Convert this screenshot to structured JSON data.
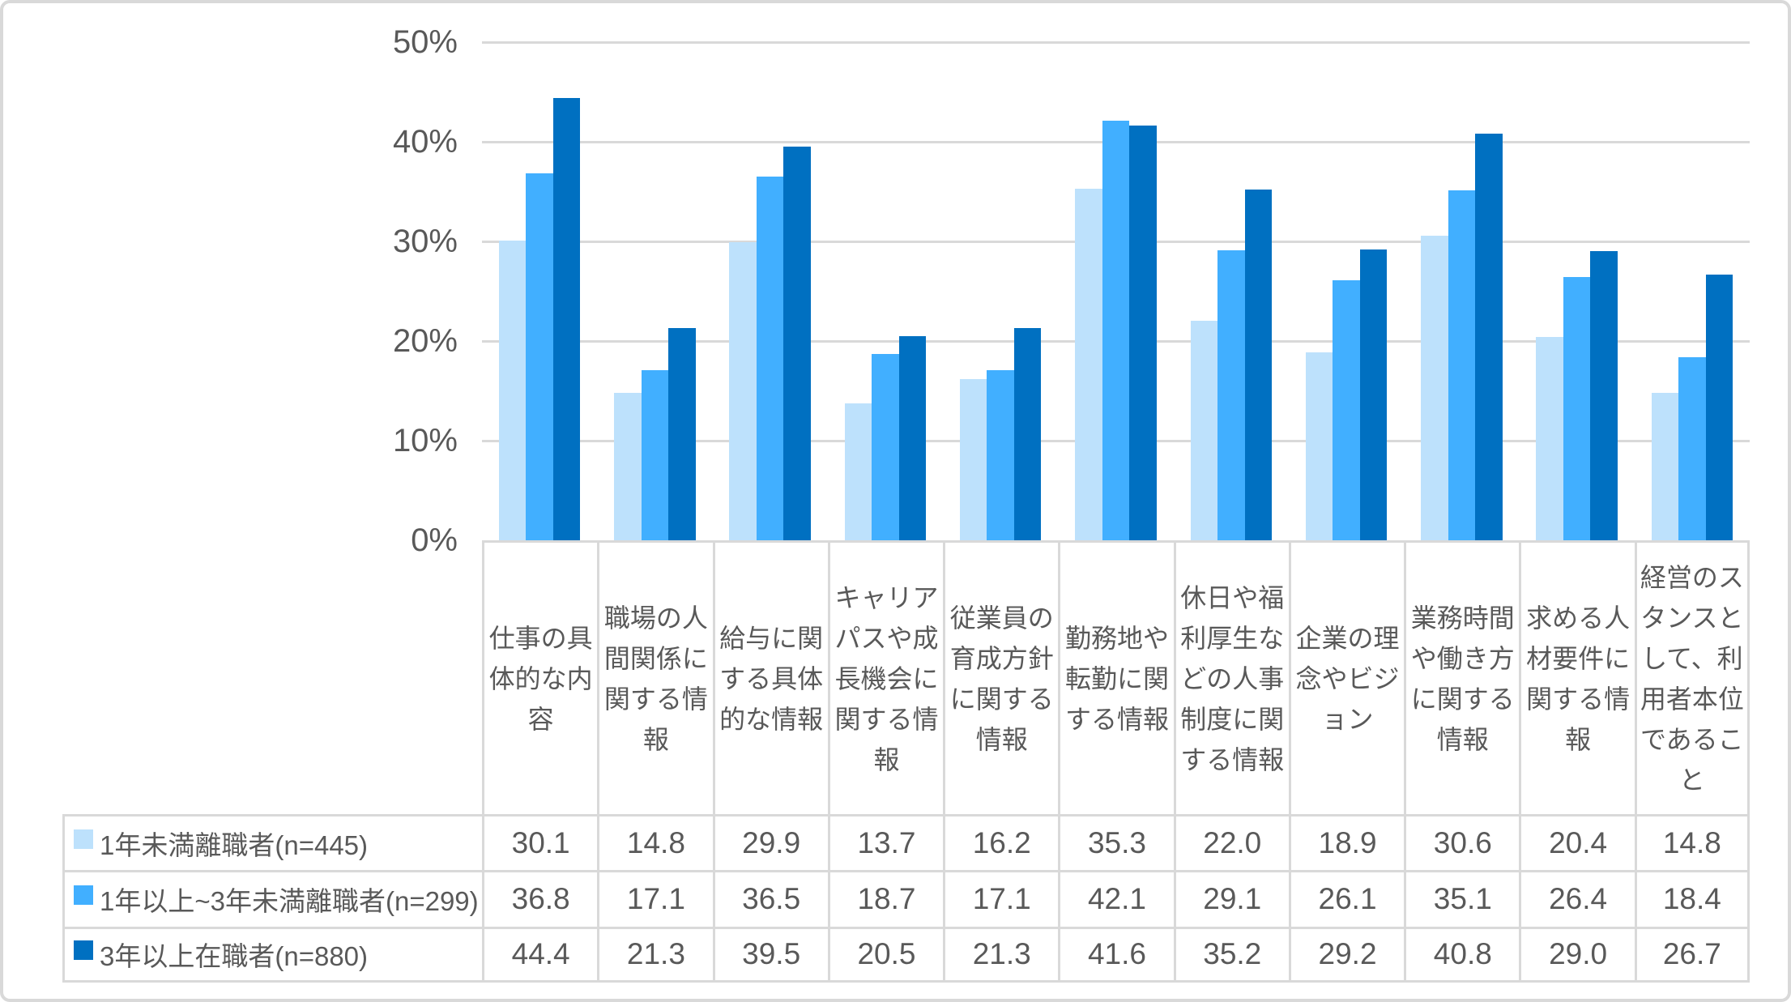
{
  "chart_data": {
    "type": "bar",
    "title": "",
    "xlabel": "",
    "ylabel": "",
    "grid": true,
    "legend_position": "data-table-left",
    "y_axis": {
      "min": 0,
      "max": 50,
      "step": 10,
      "tick_labels": [
        "0%",
        "10%",
        "20%",
        "30%",
        "40%",
        "50%"
      ]
    },
    "categories": [
      "仕事の具体的な内容",
      "職場の人間関係に関する情報",
      "給与に関する具体的な情報",
      "キャリアパスや成長機会に関する情報",
      "従業員の育成方針に関する情報",
      "勤務地や転勤に関する情報",
      "休日や福利厚生などの人事制度に関する情報",
      "企業の理念やビジョン",
      "業務時間や働き方に関する情報",
      "求める人材要件に関する情報",
      "経営のスタンスとして、利用者本位であること"
    ],
    "series": [
      {
        "name": "1年未満離職者(n=445)",
        "color": "#BDE1FC",
        "values": [
          30.1,
          14.8,
          29.9,
          13.7,
          16.2,
          35.3,
          22.0,
          18.9,
          30.6,
          20.4,
          14.8
        ]
      },
      {
        "name": "1年以上~3年未満離職者(n=299)",
        "color": "#41AFFF",
        "values": [
          36.8,
          17.1,
          36.5,
          18.7,
          17.1,
          42.1,
          29.1,
          26.1,
          35.1,
          26.4,
          18.4
        ]
      },
      {
        "name": "3年以上在職者(n=880)",
        "color": "#0070C1",
        "values": [
          44.4,
          21.3,
          39.5,
          20.5,
          21.3,
          41.6,
          35.2,
          29.2,
          40.8,
          29.0,
          26.7
        ]
      }
    ],
    "value_format": "one-decimal"
  },
  "colors": {
    "gridline": "#D9D9D9",
    "table_border": "#D9D9D9",
    "frame_border": "#D9D9D9",
    "text": "#595959",
    "background": "#FFFFFF"
  }
}
